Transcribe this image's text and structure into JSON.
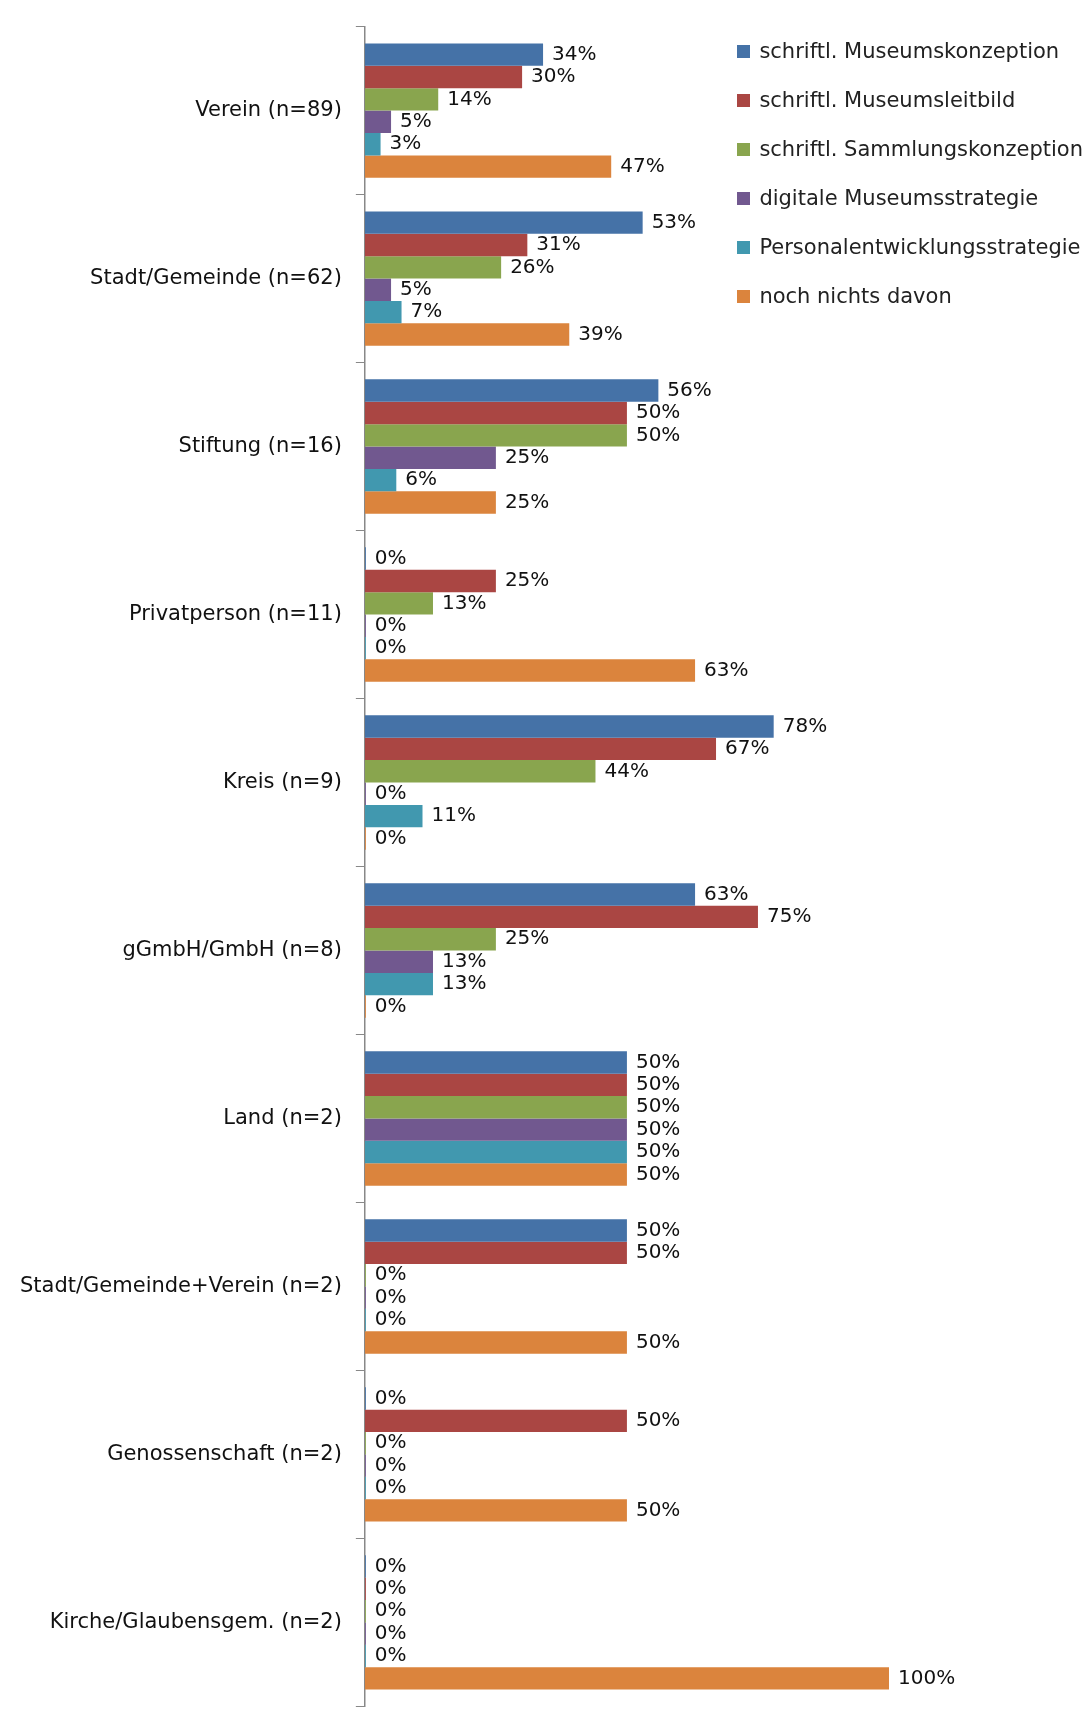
{
  "chart_data": {
    "type": "bar",
    "orientation": "horizontal",
    "grid": false,
    "legend": "top right",
    "tick_labels": "y",
    "xlim": [
      0,
      100
    ],
    "categories": [
      "Verein (n=89)",
      "Stadt/Gemeinde (n=62)",
      "Stiftung (n=16)",
      "Privatperson (n=11)",
      "Kreis (n=9)",
      "gGmbH/GmbH (n=8)",
      "Land (n=2)",
      "Stadt/Gemeinde+Verein (n=2)",
      "Genossenschaft (n=2)",
      "Kirche/Glaubensgem. (n=2)"
    ],
    "series": [
      {
        "name": "schriftl. Museumskonzeption",
        "color": "#4572a7",
        "values": [
          34,
          53,
          56,
          0,
          78,
          63,
          50,
          50,
          0,
          0
        ],
        "value_labels": [
          "34%",
          "53%",
          "56%",
          "0%",
          "78%",
          "63%",
          "50%",
          "50%",
          "0%",
          "0%"
        ]
      },
      {
        "name": "schriftl. Museumsleitbild",
        "color": "#aa4643",
        "values": [
          30,
          31,
          50,
          25,
          67,
          75,
          50,
          50,
          50,
          0
        ],
        "value_labels": [
          "30%",
          "31%",
          "50%",
          "25%",
          "67%",
          "75%",
          "50%",
          "50%",
          "50%",
          "0%"
        ]
      },
      {
        "name": "schriftl. Sammlungskonzeption",
        "color": "#89a54e",
        "values": [
          14,
          26,
          50,
          13,
          44,
          25,
          50,
          0,
          0,
          0
        ],
        "value_labels": [
          "14%",
          "26%",
          "50%",
          "13%",
          "44%",
          "25%",
          "50%",
          "0%",
          "0%",
          "0%"
        ]
      },
      {
        "name": "digitale Museumsstrategie",
        "color": "#71588f",
        "values": [
          5,
          5,
          25,
          0,
          0,
          13,
          50,
          0,
          0,
          0
        ],
        "value_labels": [
          "5%",
          "5%",
          "25%",
          "0%",
          "0%",
          "13%",
          "50%",
          "0%",
          "0%",
          "0%"
        ]
      },
      {
        "name": "Personalentwicklungsstrategie",
        "color": "#4198af",
        "values": [
          3,
          7,
          6,
          0,
          11,
          13,
          50,
          0,
          0,
          0
        ],
        "value_labels": [
          "3%",
          "7%",
          "6%",
          "0%",
          "11%",
          "13%",
          "50%",
          "0%",
          "0%",
          "0%"
        ]
      },
      {
        "name": "noch nichts davon",
        "color": "#db843d",
        "values": [
          47,
          39,
          25,
          63,
          0,
          0,
          50,
          50,
          50,
          100
        ],
        "value_labels": [
          "47%",
          "39%",
          "25%",
          "63%",
          "0%",
          "0%",
          "50%",
          "50%",
          "50%",
          "100%"
        ]
      }
    ]
  }
}
